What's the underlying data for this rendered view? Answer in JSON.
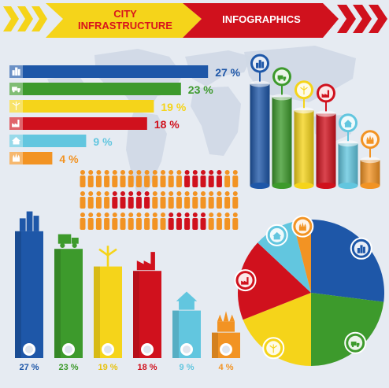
{
  "header": {
    "line1": "CITY",
    "line2": "INFRASTRUCTURE",
    "right": "INFOGRAPHICS"
  },
  "colors": {
    "yellow": "#f5d41a",
    "red": "#d0111d",
    "blue": "#1e57a8",
    "green": "#3d9a2c",
    "lightblue": "#62c6df",
    "orange": "#f29323",
    "background": "#e6ebf2",
    "map": "#cfd8e6"
  },
  "chart_data": [
    {
      "type": "bar",
      "orientation": "horizontal",
      "categories": [
        "business",
        "transport",
        "energy",
        "industry",
        "housing",
        "landmarks"
      ],
      "values": [
        27,
        23,
        19,
        18,
        9,
        4
      ],
      "labels": [
        "27 %",
        "23 %",
        "19 %",
        "18 %",
        "9 %",
        "4 %"
      ],
      "icons": [
        "building-icon",
        "truck-icon",
        "windmill-icon",
        "factory-icon",
        "house-icon",
        "castle-icon"
      ],
      "series_colors": [
        "#1e57a8",
        "#3d9a2c",
        "#f5d41a",
        "#d0111d",
        "#62c6df",
        "#f29323"
      ]
    },
    {
      "type": "bar",
      "orientation": "vertical-3d",
      "categories": [
        "business",
        "transport",
        "energy",
        "industry",
        "housing",
        "landmarks"
      ],
      "values": [
        27,
        23,
        19,
        18,
        9,
        4
      ],
      "icons": [
        "building-icon",
        "truck-icon",
        "windmill-icon",
        "factory-icon",
        "house-icon",
        "castle-icon"
      ]
    },
    {
      "type": "bar",
      "orientation": "vertical",
      "categories": [
        "business",
        "transport",
        "energy",
        "industry",
        "housing",
        "landmarks"
      ],
      "values": [
        27,
        23,
        19,
        18,
        9,
        4
      ],
      "labels": [
        "27 %",
        "23 %",
        "19 %",
        "18 %",
        "9 %",
        "4 %"
      ],
      "label_colors": [
        "#1e57a8",
        "#3d9a2c",
        "#e7c20f",
        "#d0111d",
        "#62c6df",
        "#f29323"
      ]
    },
    {
      "type": "pie",
      "categories": [
        "business",
        "transport",
        "energy",
        "industry",
        "housing",
        "landmarks"
      ],
      "values": [
        27,
        23,
        19,
        18,
        9,
        4
      ],
      "icons": [
        "building-icon",
        "truck-icon",
        "windmill-icon",
        "factory-icon",
        "house-icon",
        "castle-icon"
      ]
    },
    {
      "type": "pictogram",
      "rows": 3,
      "per_row": 20,
      "highlighted": [
        {
          "row": 0,
          "from": 13,
          "count": 5
        },
        {
          "row": 1,
          "from": 4,
          "count": 5
        },
        {
          "row": 2,
          "from": 11,
          "count": 5
        }
      ]
    }
  ]
}
